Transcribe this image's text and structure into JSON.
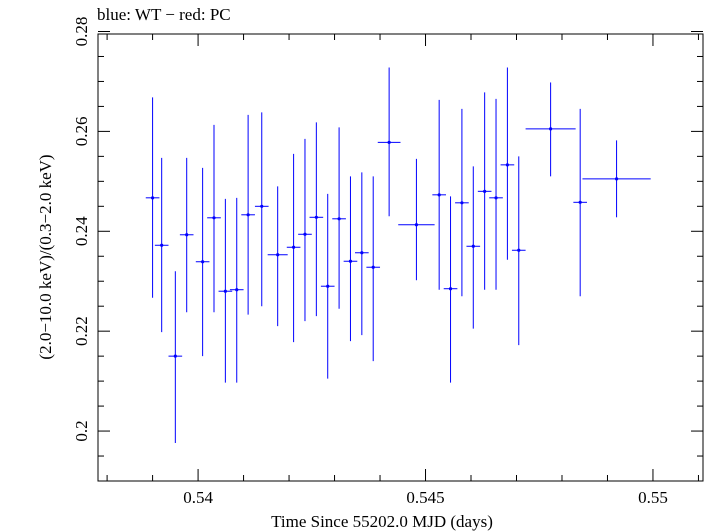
{
  "chart_data": {
    "type": "scatter",
    "title": "blue: WT − red: PC",
    "xlabel": "Time Since 55202.0 MJD (days)",
    "ylabel": "(2.0−10.0 keV)/(0.3−2.0 keV)",
    "xlim": [
      0.5378,
      0.5511
    ],
    "ylim": [
      0.19,
      0.2795
    ],
    "x_ticks": [
      0.54,
      0.545,
      0.55
    ],
    "x_tick_labels": [
      "0.54",
      "0.545",
      "0.55"
    ],
    "y_ticks": [
      0.2,
      0.22,
      0.24,
      0.26,
      0.28
    ],
    "y_tick_labels": [
      "0.2",
      "0.22",
      "0.24",
      "0.26",
      "0.28"
    ],
    "grid": false,
    "series": [
      {
        "name": "WT",
        "color": "#0000ff",
        "points": [
          {
            "x": 0.539,
            "y": 0.2467,
            "xerr": 0.00015,
            "ylo": 0.2267,
            "yhi": 0.2668
          },
          {
            "x": 0.5392,
            "y": 0.2372,
            "xerr": 0.00015,
            "ylo": 0.2198,
            "yhi": 0.2547
          },
          {
            "x": 0.5395,
            "y": 0.215,
            "xerr": 0.00015,
            "ylo": 0.1976,
            "yhi": 0.232
          },
          {
            "x": 0.53975,
            "y": 0.2393,
            "xerr": 0.00015,
            "ylo": 0.2238,
            "yhi": 0.2547
          },
          {
            "x": 0.5401,
            "y": 0.2339,
            "xerr": 0.00015,
            "ylo": 0.215,
            "yhi": 0.2527
          },
          {
            "x": 0.54035,
            "y": 0.2427,
            "xerr": 0.00015,
            "ylo": 0.2238,
            "yhi": 0.2613
          },
          {
            "x": 0.5406,
            "y": 0.228,
            "xerr": 0.00015,
            "ylo": 0.2097,
            "yhi": 0.2465
          },
          {
            "x": 0.54085,
            "y": 0.2283,
            "xerr": 0.00015,
            "ylo": 0.2097,
            "yhi": 0.2467
          },
          {
            "x": 0.5411,
            "y": 0.2433,
            "xerr": 0.00015,
            "ylo": 0.2233,
            "yhi": 0.2633
          },
          {
            "x": 0.5414,
            "y": 0.245,
            "xerr": 0.00015,
            "ylo": 0.225,
            "yhi": 0.2638
          },
          {
            "x": 0.54175,
            "y": 0.2353,
            "xerr": 0.00022,
            "ylo": 0.221,
            "yhi": 0.249
          },
          {
            "x": 0.5421,
            "y": 0.2368,
            "xerr": 0.00015,
            "ylo": 0.2178,
            "yhi": 0.2555
          },
          {
            "x": 0.54235,
            "y": 0.2394,
            "xerr": 0.00015,
            "ylo": 0.222,
            "yhi": 0.2585
          },
          {
            "x": 0.5426,
            "y": 0.2428,
            "xerr": 0.00015,
            "ylo": 0.223,
            "yhi": 0.2618
          },
          {
            "x": 0.54285,
            "y": 0.229,
            "xerr": 0.00015,
            "ylo": 0.2105,
            "yhi": 0.2475
          },
          {
            "x": 0.5431,
            "y": 0.2425,
            "xerr": 0.00015,
            "ylo": 0.2245,
            "yhi": 0.2608
          },
          {
            "x": 0.54335,
            "y": 0.234,
            "xerr": 0.00015,
            "ylo": 0.218,
            "yhi": 0.251
          },
          {
            "x": 0.5436,
            "y": 0.2357,
            "xerr": 0.00015,
            "ylo": 0.2192,
            "yhi": 0.2518
          },
          {
            "x": 0.54385,
            "y": 0.2328,
            "xerr": 0.00015,
            "ylo": 0.214,
            "yhi": 0.251
          },
          {
            "x": 0.5442,
            "y": 0.2578,
            "xerr": 0.00025,
            "ylo": 0.243,
            "yhi": 0.2728
          },
          {
            "x": 0.5448,
            "y": 0.2413,
            "xerr": 0.0004,
            "ylo": 0.2302,
            "yhi": 0.2545
          },
          {
            "x": 0.5453,
            "y": 0.2473,
            "xerr": 0.00015,
            "ylo": 0.2283,
            "yhi": 0.2663
          },
          {
            "x": 0.54555,
            "y": 0.2285,
            "xerr": 0.00015,
            "ylo": 0.2097,
            "yhi": 0.247
          },
          {
            "x": 0.5458,
            "y": 0.2457,
            "xerr": 0.00015,
            "ylo": 0.227,
            "yhi": 0.2645
          },
          {
            "x": 0.54605,
            "y": 0.237,
            "xerr": 0.00015,
            "ylo": 0.2205,
            "yhi": 0.253
          },
          {
            "x": 0.5463,
            "y": 0.248,
            "xerr": 0.00015,
            "ylo": 0.2283,
            "yhi": 0.2678
          },
          {
            "x": 0.54655,
            "y": 0.2467,
            "xerr": 0.00015,
            "ylo": 0.2283,
            "yhi": 0.2665
          },
          {
            "x": 0.5468,
            "y": 0.2533,
            "xerr": 0.00015,
            "ylo": 0.2343,
            "yhi": 0.2728
          },
          {
            "x": 0.54705,
            "y": 0.2362,
            "xerr": 0.00015,
            "ylo": 0.2172,
            "yhi": 0.255
          },
          {
            "x": 0.54775,
            "y": 0.2605,
            "xerr": 0.00055,
            "ylo": 0.251,
            "yhi": 0.2698
          },
          {
            "x": 0.5484,
            "y": 0.2458,
            "xerr": 0.00015,
            "ylo": 0.227,
            "yhi": 0.2645
          },
          {
            "x": 0.5492,
            "y": 0.2505,
            "xerr": 0.00075,
            "ylo": 0.2428,
            "yhi": 0.2582
          }
        ]
      }
    ]
  }
}
